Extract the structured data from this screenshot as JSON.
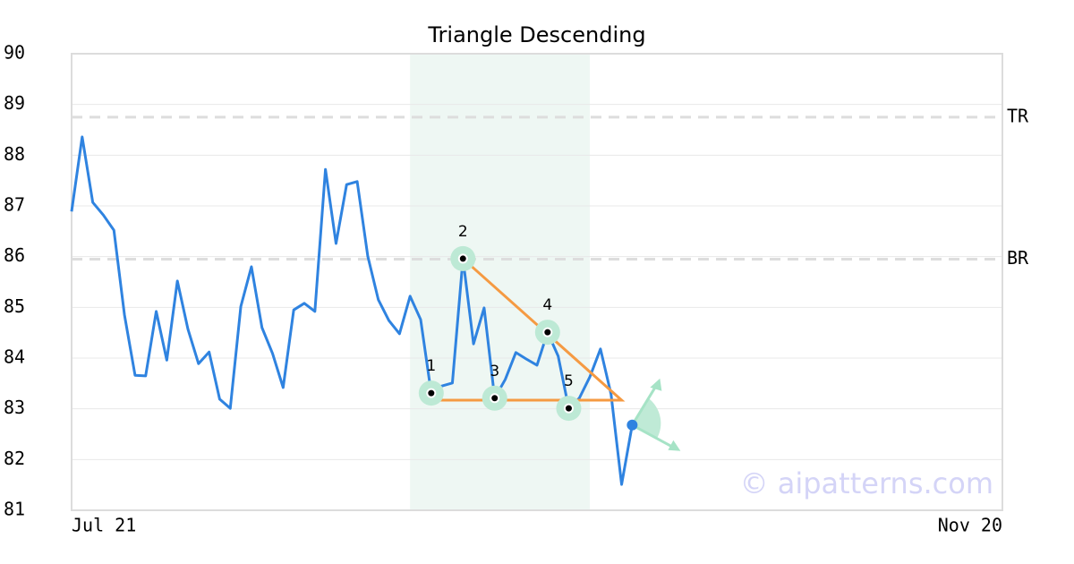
{
  "chart_data": {
    "type": "line",
    "title": "Triangle Descending",
    "x": [
      0,
      1,
      2,
      3,
      4,
      5,
      6,
      7,
      8,
      9,
      10,
      11,
      12,
      13,
      14,
      15,
      16,
      17,
      18,
      19,
      20,
      21,
      22,
      23,
      24,
      25,
      26,
      27,
      28,
      29,
      30,
      31,
      32,
      33,
      34,
      35,
      36,
      37,
      38,
      39,
      40,
      41,
      42,
      43,
      44,
      45,
      46,
      47,
      48,
      49,
      50,
      51,
      52,
      53
    ],
    "values": [
      86.89,
      88.36,
      87.07,
      86.82,
      86.52,
      84.85,
      83.66,
      83.65,
      84.92,
      83.96,
      85.52,
      84.57,
      83.89,
      84.12,
      83.19,
      83.01,
      85.02,
      85.8,
      84.6,
      84.09,
      83.42,
      84.95,
      85.08,
      84.92,
      87.72,
      86.26,
      87.42,
      87.48,
      86.01,
      85.15,
      84.74,
      84.48,
      85.22,
      84.76,
      83.31,
      83.45,
      83.51,
      85.96,
      84.28,
      84.99,
      83.21,
      83.58,
      84.11,
      83.98,
      83.86,
      84.51,
      84.04,
      83.01,
      83.21,
      83.63,
      84.18,
      83.29,
      81.51,
      82.68
    ],
    "color": "#2f83e0",
    "xlim": [
      0,
      88
    ],
    "xticks": [
      {
        "value": 0,
        "label": "Jul 21"
      },
      {
        "value": 88,
        "label": "Nov 20"
      }
    ],
    "ylim": [
      81,
      90
    ],
    "yticks": [
      81,
      82,
      83,
      84,
      85,
      86,
      87,
      88,
      89,
      90
    ],
    "grid": true,
    "highlight": [
      32,
      49
    ],
    "levels": [
      {
        "name": "TR",
        "value": 88.75
      },
      {
        "name": "BR",
        "value": 85.95
      }
    ],
    "pattern": {
      "x": [
        34,
        37,
        40,
        45,
        47
      ],
      "y": [
        83.31,
        85.96,
        83.21,
        84.51,
        83.01
      ],
      "labels": [
        "1",
        "2",
        "3",
        "4",
        "5"
      ]
    },
    "triangle": {
      "x": [
        37,
        52,
        34
      ],
      "y": [
        85.96,
        83.17,
        83.17
      ],
      "color": "#f59a42"
    },
    "watermark": "© aipatterns.com"
  }
}
